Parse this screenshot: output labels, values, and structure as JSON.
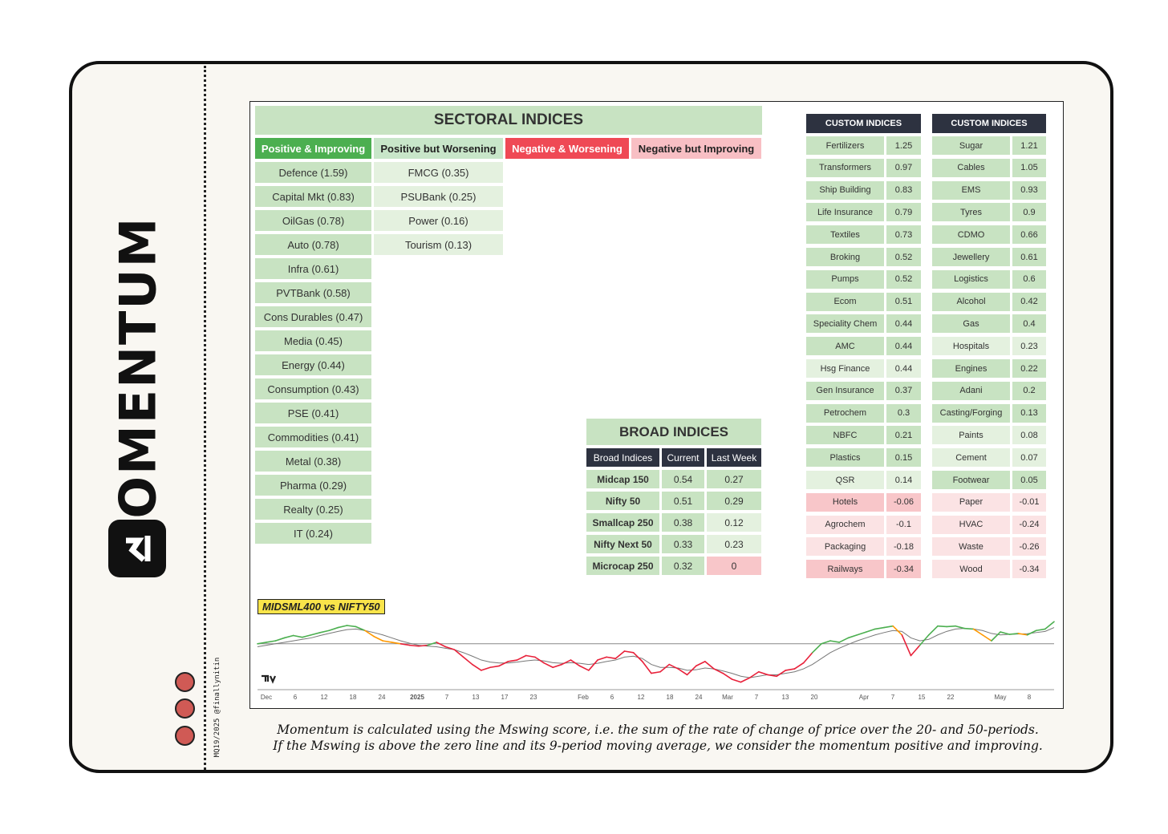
{
  "brand": {
    "word": "MOMENTUM",
    "handle": "MQ19/2025 @finallynitin"
  },
  "sectoral": {
    "title": "SECTORAL INDICES",
    "headers": [
      "Positive & Improving",
      "Positive but Worsening",
      "Negative & Worsening",
      "Negative but Improving"
    ],
    "positive_improving": [
      "Defence (1.59)",
      "Capital Mkt (0.83)",
      "OilGas (0.78)",
      "Auto (0.78)",
      "Infra (0.61)",
      "PVTBank (0.58)",
      "Cons Durables (0.47)",
      "Media (0.45)",
      "Energy (0.44)",
      "Consumption (0.43)",
      "PSE (0.41)",
      "Commodities (0.41)",
      "Metal (0.38)",
      "Pharma (0.29)",
      "Realty (0.25)",
      "IT (0.24)"
    ],
    "positive_worsening": [
      "FMCG (0.35)",
      "PSUBank (0.25)",
      "Power (0.16)",
      "Tourism (0.13)"
    ],
    "negative_worsening": [],
    "negative_improving": []
  },
  "broad": {
    "title": "BROAD INDICES",
    "headers": [
      "Broad Indices",
      "Current",
      "Last Week"
    ],
    "rows": [
      {
        "name": "Midcap 150",
        "current": "0.54",
        "last": "0.27"
      },
      {
        "name": "Nifty 50",
        "current": "0.51",
        "last": "0.29"
      },
      {
        "name": "Smallcap 250",
        "current": "0.38",
        "last": "0.12"
      },
      {
        "name": "Nifty Next 50",
        "current": "0.33",
        "last": "0.23"
      },
      {
        "name": "Microcap 250",
        "current": "0.32",
        "last": "0"
      }
    ]
  },
  "custom_left": {
    "title": "CUSTOM INDICES",
    "rows": [
      {
        "name": "Fertilizers",
        "value": "1.25",
        "state": "g"
      },
      {
        "name": "Transformers",
        "value": "0.97",
        "state": "g"
      },
      {
        "name": "Ship Building",
        "value": "0.83",
        "state": "g"
      },
      {
        "name": "Life Insurance",
        "value": "0.79",
        "state": "g"
      },
      {
        "name": "Textiles",
        "value": "0.73",
        "state": "g"
      },
      {
        "name": "Broking",
        "value": "0.52",
        "state": "g"
      },
      {
        "name": "Pumps",
        "value": "0.52",
        "state": "g"
      },
      {
        "name": "Ecom",
        "value": "0.51",
        "state": "g"
      },
      {
        "name": "Speciality Chem",
        "value": "0.44",
        "state": "g"
      },
      {
        "name": "AMC",
        "value": "0.44",
        "state": "g"
      },
      {
        "name": "Hsg Finance",
        "value": "0.44",
        "state": "lg"
      },
      {
        "name": "Gen Insurance",
        "value": "0.37",
        "state": "g"
      },
      {
        "name": "Petrochem",
        "value": "0.3",
        "state": "g"
      },
      {
        "name": "NBFC",
        "value": "0.21",
        "state": "g"
      },
      {
        "name": "Plastics",
        "value": "0.15",
        "state": "g"
      },
      {
        "name": "QSR",
        "value": "0.14",
        "state": "lg"
      },
      {
        "name": "Hotels",
        "value": "-0.06",
        "state": "r"
      },
      {
        "name": "Agrochem",
        "value": "-0.1",
        "state": "lr"
      },
      {
        "name": "Packaging",
        "value": "-0.18",
        "state": "lr"
      },
      {
        "name": "Railways",
        "value": "-0.34",
        "state": "r"
      }
    ]
  },
  "custom_right": {
    "title": "CUSTOM INDICES",
    "rows": [
      {
        "name": "Sugar",
        "value": "1.21",
        "state": "g"
      },
      {
        "name": "Cables",
        "value": "1.05",
        "state": "g"
      },
      {
        "name": "EMS",
        "value": "0.93",
        "state": "g"
      },
      {
        "name": "Tyres",
        "value": "0.9",
        "state": "g"
      },
      {
        "name": "CDMO",
        "value": "0.66",
        "state": "g"
      },
      {
        "name": "Jewellery",
        "value": "0.61",
        "state": "g"
      },
      {
        "name": "Logistics",
        "value": "0.6",
        "state": "g"
      },
      {
        "name": "Alcohol",
        "value": "0.42",
        "state": "g"
      },
      {
        "name": "Gas",
        "value": "0.4",
        "state": "g"
      },
      {
        "name": "Hospitals",
        "value": "0.23",
        "state": "lg"
      },
      {
        "name": "Engines",
        "value": "0.22",
        "state": "g"
      },
      {
        "name": "Adani",
        "value": "0.2",
        "state": "g"
      },
      {
        "name": "Casting/Forging",
        "value": "0.13",
        "state": "g"
      },
      {
        "name": "Paints",
        "value": "0.08",
        "state": "lg"
      },
      {
        "name": "Cement",
        "value": "0.07",
        "state": "lg"
      },
      {
        "name": "Footwear",
        "value": "0.05",
        "state": "g"
      },
      {
        "name": "Paper",
        "value": "-0.01",
        "state": "lr"
      },
      {
        "name": "HVAC",
        "value": "-0.24",
        "state": "lr"
      },
      {
        "name": "Waste",
        "value": "-0.26",
        "state": "lr"
      },
      {
        "name": "Wood",
        "value": "-0.34",
        "state": "lr"
      }
    ]
  },
  "chart_data": {
    "type": "line",
    "title": "MIDSML400 vs NIFTY50",
    "x_ticks": [
      "Dec",
      "6",
      "12",
      "18",
      "24",
      "2025",
      "7",
      "13",
      "17",
      "23",
      "Feb",
      "6",
      "12",
      "18",
      "24",
      "Mar",
      "7",
      "13",
      "20",
      "Apr",
      "7",
      "15",
      "22",
      "May",
      "8"
    ],
    "zero_line": 0,
    "ylim": [
      -1.5,
      1.0
    ],
    "series": [
      {
        "values": [
          0.0,
          0.05,
          0.1,
          0.2,
          0.28,
          0.22,
          0.3,
          0.38,
          0.45,
          0.55,
          0.62,
          0.58,
          0.45,
          0.25,
          0.1,
          0.05,
          0.0,
          -0.05,
          -0.08,
          -0.05,
          0.05,
          -0.1,
          -0.2,
          -0.45,
          -0.7,
          -0.9,
          -0.8,
          -0.75,
          -0.6,
          -0.55,
          -0.4,
          -0.45,
          -0.65,
          -0.8,
          -0.7,
          -0.55,
          -0.75,
          -0.9,
          -0.55,
          -0.45,
          -0.5,
          -0.25,
          -0.3,
          -0.6,
          -1.0,
          -0.95,
          -0.7,
          -0.85,
          -1.05,
          -0.75,
          -0.6,
          -0.85,
          -1.0,
          -1.2,
          -1.3,
          -1.15,
          -0.95,
          -1.05,
          -1.1,
          -0.9,
          -0.85,
          -0.65,
          -0.3,
          0.0,
          0.1,
          0.05,
          0.2,
          0.3,
          0.4,
          0.5,
          0.55,
          0.6,
          0.3,
          -0.4,
          -0.05,
          0.3,
          0.6,
          0.58,
          0.6,
          0.52,
          0.5,
          0.3,
          0.1,
          0.4,
          0.32,
          0.35,
          0.3,
          0.45,
          0.5,
          0.75
        ]
      },
      {
        "values": [
          -0.1,
          -0.05,
          0.0,
          0.05,
          0.1,
          0.15,
          0.2,
          0.28,
          0.35,
          0.42,
          0.48,
          0.5,
          0.45,
          0.38,
          0.3,
          0.2,
          0.1,
          0.02,
          -0.05,
          -0.08,
          -0.1,
          -0.15,
          -0.2,
          -0.3,
          -0.42,
          -0.55,
          -0.62,
          -0.65,
          -0.65,
          -0.62,
          -0.58,
          -0.55,
          -0.58,
          -0.64,
          -0.66,
          -0.64,
          -0.66,
          -0.7,
          -0.66,
          -0.6,
          -0.55,
          -0.45,
          -0.42,
          -0.5,
          -0.7,
          -0.8,
          -0.8,
          -0.82,
          -0.9,
          -0.88,
          -0.82,
          -0.85,
          -0.92,
          -1.0,
          -1.1,
          -1.15,
          -1.1,
          -1.05,
          -1.05,
          -1.0,
          -0.95,
          -0.85,
          -0.7,
          -0.5,
          -0.3,
          -0.15,
          -0.02,
          0.1,
          0.2,
          0.3,
          0.38,
          0.45,
          0.42,
          0.2,
          0.1,
          0.15,
          0.3,
          0.42,
          0.5,
          0.52,
          0.5,
          0.45,
          0.35,
          0.3,
          0.32,
          0.33,
          0.34,
          0.38,
          0.42,
          0.55
        ]
      }
    ]
  },
  "note": {
    "line1": "Momentum is calculated using the Mswing score, i.e. the sum of the rate of change of price over the 20- and 50-periods.",
    "line2": "If the Mswing is above the zero line and its 9-period moving average, we consider the momentum positive and improving."
  },
  "colors": {
    "positive_improving": "#4caf50",
    "positive_worsening": "#ff9800",
    "negative_worsening": "#e8213a",
    "ma_line": "#777777"
  }
}
